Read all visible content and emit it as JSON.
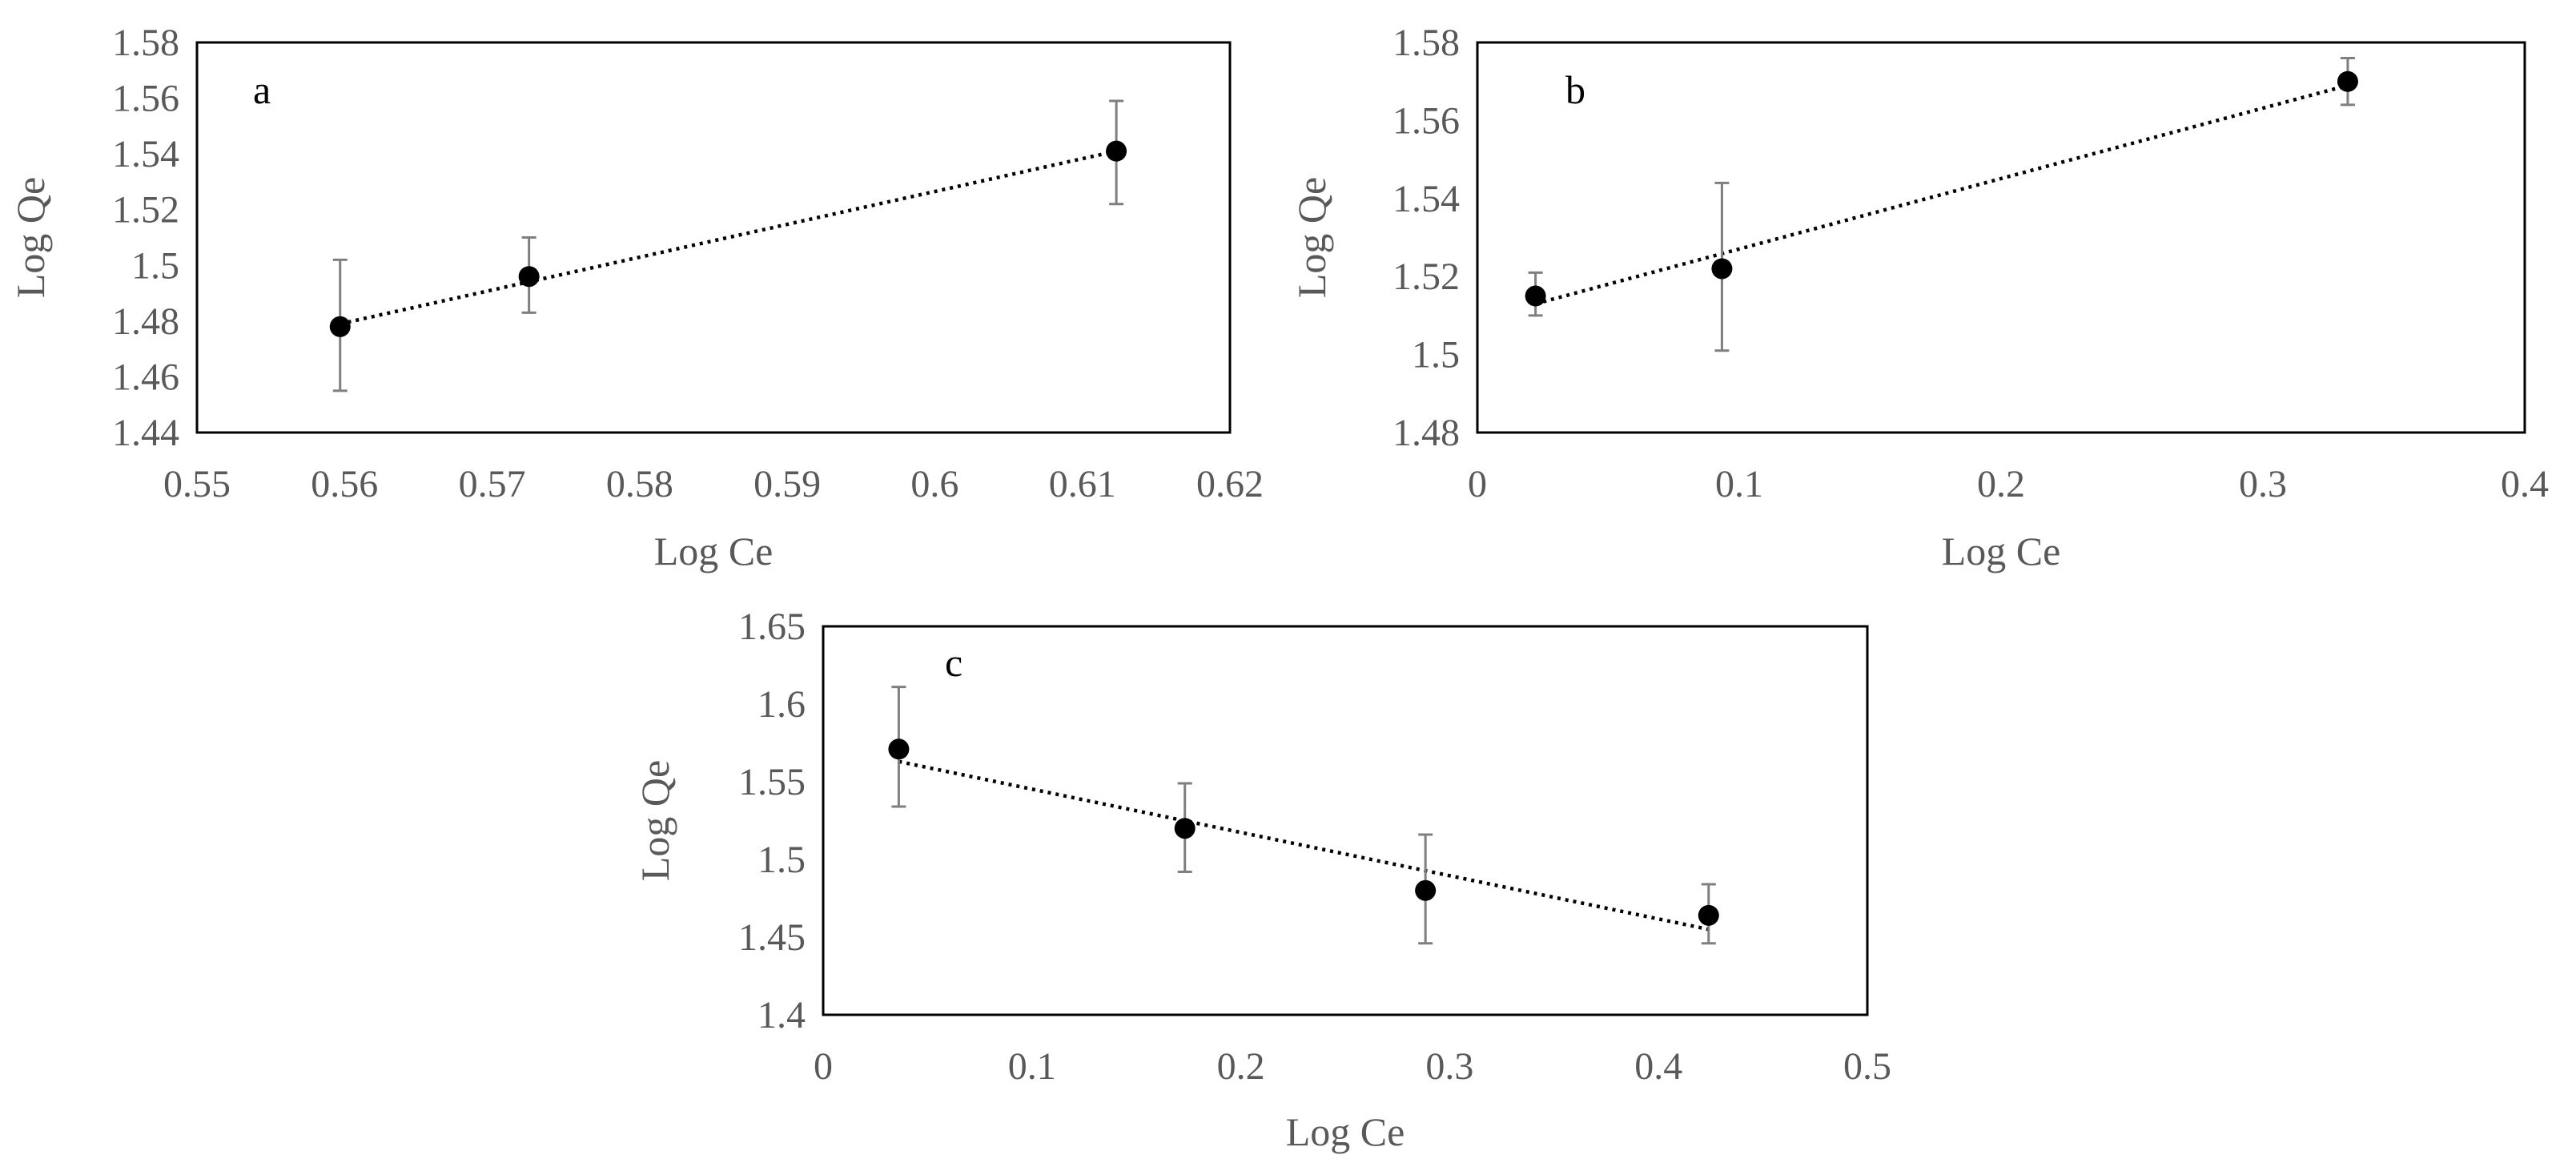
{
  "chart_data": [
    {
      "type": "scatter",
      "panel": "a",
      "xlabel": "Log Ce",
      "ylabel": "Log Qe",
      "xlim": [
        0.55,
        0.62
      ],
      "ylim": [
        1.44,
        1.58
      ],
      "xticks": [
        0.55,
        0.56,
        0.57,
        0.58,
        0.59,
        0.6,
        0.61,
        0.62
      ],
      "xtick_labels": [
        "0.55",
        "0.56",
        "0.57",
        "0.58",
        "0.59",
        "0.6",
        "0.61",
        "0.62"
      ],
      "yticks": [
        1.44,
        1.46,
        1.48,
        1.5,
        1.52,
        1.54,
        1.56,
        1.58
      ],
      "ytick_labels": [
        "1.44",
        "1.46",
        "1.48",
        "1.5",
        "1.52",
        "1.54",
        "1.56",
        "1.58"
      ],
      "points": [
        {
          "x": 0.5597,
          "y": 1.478,
          "err_low": 1.455,
          "err_high": 1.502
        },
        {
          "x": 0.5725,
          "y": 1.496,
          "err_low": 1.483,
          "err_high": 1.51
        },
        {
          "x": 0.6123,
          "y": 1.541,
          "err_low": 1.522,
          "err_high": 1.559
        }
      ],
      "trendline": {
        "style": "dotted",
        "x": [
          0.5597,
          0.6123
        ],
        "y": [
          1.479,
          1.541
        ]
      }
    },
    {
      "type": "scatter",
      "panel": "b",
      "xlabel": "Log Ce",
      "ylabel": "Log Qe",
      "xlim": [
        0,
        0.4
      ],
      "ylim": [
        1.48,
        1.58
      ],
      "xticks": [
        0,
        0.1,
        0.2,
        0.3,
        0.4
      ],
      "xtick_labels": [
        "0",
        "0.1",
        "0.2",
        "0.3",
        "0.4"
      ],
      "yticks": [
        1.48,
        1.5,
        1.52,
        1.54,
        1.56,
        1.58
      ],
      "ytick_labels": [
        "1.48",
        "1.5",
        "1.52",
        "1.54",
        "1.56",
        "1.58"
      ],
      "points": [
        {
          "x": 0.0222,
          "y": 1.515,
          "err_low": 1.51,
          "err_high": 1.521
        },
        {
          "x": 0.0934,
          "y": 1.522,
          "err_low": 1.501,
          "err_high": 1.544
        },
        {
          "x": 0.3324,
          "y": 1.57,
          "err_low": 1.564,
          "err_high": 1.576
        }
      ],
      "trendline": {
        "style": "dotted",
        "x": [
          0.0222,
          0.3324
        ],
        "y": [
          1.513,
          1.569
        ]
      }
    },
    {
      "type": "scatter",
      "panel": "c",
      "xlabel": "Log Ce",
      "ylabel": "Log Qe",
      "xlim": [
        0,
        0.5
      ],
      "ylim": [
        1.4,
        1.65
      ],
      "xticks": [
        0,
        0.1,
        0.2,
        0.3,
        0.4,
        0.5
      ],
      "xtick_labels": [
        "0",
        "0.1",
        "0.2",
        "0.3",
        "0.4",
        "0.5"
      ],
      "yticks": [
        1.4,
        1.45,
        1.5,
        1.55,
        1.6,
        1.65
      ],
      "ytick_labels": [
        "1.4",
        "1.45",
        "1.5",
        "1.55",
        "1.6",
        "1.65"
      ],
      "points": [
        {
          "x": 0.0362,
          "y": 1.571,
          "err_low": 1.534,
          "err_high": 1.611
        },
        {
          "x": 0.1732,
          "y": 1.52,
          "err_low": 1.492,
          "err_high": 1.549
        },
        {
          "x": 0.2884,
          "y": 1.48,
          "err_low": 1.446,
          "err_high": 1.516
        },
        {
          "x": 0.424,
          "y": 1.464,
          "err_low": 1.446,
          "err_high": 1.484
        }
      ],
      "trendline": {
        "style": "dotted",
        "x": [
          0.0362,
          0.424
        ],
        "y": [
          1.563,
          1.455
        ]
      }
    }
  ]
}
